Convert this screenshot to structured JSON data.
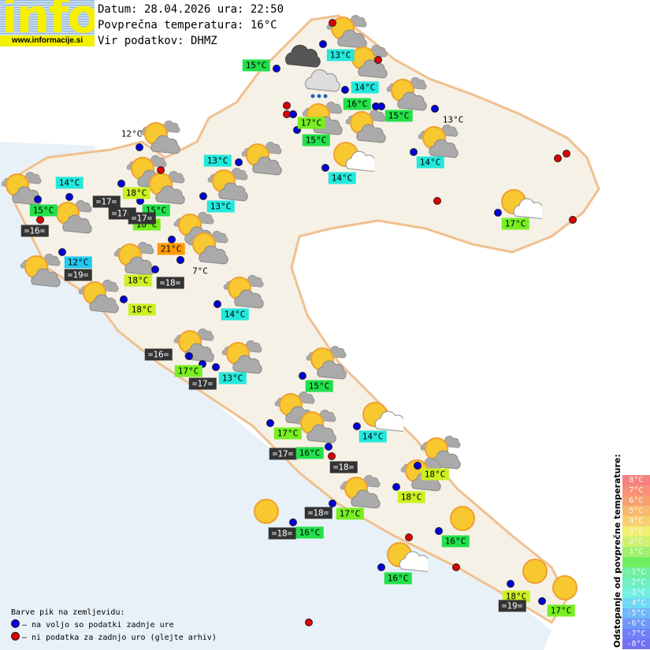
{
  "header": {
    "logo_text": "info",
    "logo_url": "www.informacije.si",
    "date_line": "Datum: 28.04.2026 ura: 22:50",
    "avg_temp_line": "Povprečna temperatura: 16°C",
    "source_line": "Vir podatkov: DHMZ"
  },
  "colors": {
    "cyan": "#22e8dc",
    "green": "#22e04a",
    "lime": "#77ee22",
    "yellow": "#ccf022",
    "orange": "#ff9a00",
    "blue": "#22c8f0",
    "sea": "#333333",
    "plain": "transparent",
    "dot_blue": "#0000dd",
    "dot_red": "#dd0000",
    "land": "#f6f1e6",
    "sea_bg": "#e8f1f8"
  },
  "stations": [
    {
      "label": "13°C",
      "style": "cyan",
      "dot": "blue"
    },
    {
      "label": "15°C",
      "style": "green",
      "dot": "blue"
    },
    {
      "label": "14°C",
      "style": "cyan",
      "dot": "blue"
    },
    {
      "label": "16°C",
      "style": "green",
      "dot": "blue"
    },
    {
      "label": "15°C",
      "style": "green",
      "dot": "blue"
    },
    {
      "label": "13°C",
      "style": "plain",
      "dot": "blue"
    },
    {
      "label": "17°C",
      "style": "lime",
      "dot": "blue"
    },
    {
      "label": "15°C",
      "style": "green",
      "dot": "blue"
    },
    {
      "label": "14°C",
      "style": "cyan",
      "dot": "blue"
    },
    {
      "label": "14°C",
      "style": "cyan",
      "dot": "blue"
    },
    {
      "label": "12°C",
      "style": "plain",
      "dot": "blue"
    },
    {
      "label": "13°C",
      "style": "cyan",
      "dot": "blue"
    },
    {
      "label": "14°C",
      "style": "cyan",
      "dot": "blue"
    },
    {
      "label": "18°C",
      "style": "yellow",
      "dot": "blue"
    },
    {
      "label": "15°C",
      "style": "green",
      "dot": "blue"
    },
    {
      "label": "=17=",
      "style": "sea",
      "dot": null
    },
    {
      "label": "=17=",
      "style": "sea",
      "dot": "blue"
    },
    {
      "label": "18°C",
      "style": "lime",
      "dot": null
    },
    {
      "label": "15°C",
      "style": "green",
      "dot": "blue"
    },
    {
      "label": "=17=",
      "style": "sea",
      "dot": null
    },
    {
      "label": "13°C",
      "style": "cyan",
      "dot": "blue"
    },
    {
      "label": "=16=",
      "style": "sea",
      "dot": "red"
    },
    {
      "label": "21°C",
      "style": "orange",
      "dot": "blue"
    },
    {
      "label": "12°C",
      "style": "blue",
      "dot": "blue"
    },
    {
      "label": "=19=",
      "style": "sea",
      "dot": null
    },
    {
      "label": "7°C",
      "style": "plain",
      "dot": "blue"
    },
    {
      "label": "18°C",
      "style": "yellow",
      "dot": "blue"
    },
    {
      "label": "=18=",
      "style": "sea",
      "dot": null
    },
    {
      "label": "18°C",
      "style": "yellow",
      "dot": "blue"
    },
    {
      "label": "14°C",
      "style": "cyan",
      "dot": "blue"
    },
    {
      "label": "=16=",
      "style": "sea",
      "dot": null
    },
    {
      "label": "17°C",
      "style": "lime",
      "dot": "blue"
    },
    {
      "label": "13°C",
      "style": "cyan",
      "dot": "blue"
    },
    {
      "label": "=17=",
      "style": "sea",
      "dot": null
    },
    {
      "label": "15°C",
      "style": "green",
      "dot": "blue"
    },
    {
      "label": "17°C",
      "style": "lime",
      "dot": "blue"
    },
    {
      "label": "14°C",
      "style": "cyan",
      "dot": "blue"
    },
    {
      "label": "=17=",
      "style": "sea",
      "dot": null
    },
    {
      "label": "16°C",
      "style": "green",
      "dot": "blue"
    },
    {
      "label": "=18=",
      "style": "sea",
      "dot": "red"
    },
    {
      "label": "18°C",
      "style": "yellow",
      "dot": "blue"
    },
    {
      "label": "18°C",
      "style": "yellow",
      "dot": "blue"
    },
    {
      "label": "=18=",
      "style": "sea",
      "dot": null
    },
    {
      "label": "17°C",
      "style": "lime",
      "dot": "blue"
    },
    {
      "label": "=18=",
      "style": "sea",
      "dot": null
    },
    {
      "label": "16°C",
      "style": "green",
      "dot": "blue"
    },
    {
      "label": "16°C",
      "style": "green",
      "dot": "blue"
    },
    {
      "label": "16°C",
      "style": "green",
      "dot": "blue"
    },
    {
      "label": "18°C",
      "style": "yellow",
      "dot": "blue"
    },
    {
      "label": "=19=",
      "style": "sea",
      "dot": null
    },
    {
      "label": "17°C",
      "style": "lime",
      "dot": "blue"
    },
    {
      "label": "17°C",
      "style": "lime",
      "dot": "blue"
    }
  ],
  "extra_dots": [
    "red",
    "red",
    "red",
    "red",
    "red",
    "red",
    "red",
    "red",
    "red",
    "red",
    "red",
    "red",
    "blue",
    "blue",
    "blue",
    "blue"
  ],
  "icons": [
    "sun-cloud",
    "sun-cloud",
    "sun-cloud",
    "sun-cloud",
    "sun-cloud",
    "sun-cloud",
    "sun-cloud",
    "sun-cloud",
    "sun-cloud",
    "sun-cloud",
    "sun-cloud",
    "sun-cloud",
    "sun-cloud",
    "sun-cloud",
    "sun-cloud",
    "sun-cloud",
    "sun-cloud",
    "sun-cloud",
    "sun-cloud",
    "sun-cloud",
    "sun-cloud",
    "sun-cloud",
    "sun-cloud",
    "sun-cloud",
    "sun-cloud",
    "sun-cloud",
    "sun-cloud",
    "dark-cloud",
    "rain-cloud",
    "sun-white-cloud",
    "sun-white-cloud",
    "sun-white-cloud",
    "sun-white-cloud",
    "sun",
    "sun",
    "sun",
    "sun"
  ],
  "legend": {
    "title": "Barve pik na zemljevidu:",
    "blue": "– na voljo so podatki zadnje ure",
    "red": "– ni podatka za zadnjo uro (glejte arhiv)"
  },
  "scale": {
    "title": "Odstopanje od povprečne temperature:",
    "steps": [
      {
        "label": "8°C",
        "color": "#f88080"
      },
      {
        "label": "7°C",
        "color": "#f89078"
      },
      {
        "label": "6°C",
        "color": "#f8a070"
      },
      {
        "label": "5°C",
        "color": "#f8b870"
      },
      {
        "label": "4°C",
        "color": "#f8d070"
      },
      {
        "label": "3°C",
        "color": "#f0f070"
      },
      {
        "label": "2°C",
        "color": "#d0f070"
      },
      {
        "label": "1°C",
        "color": "#a0f070"
      },
      {
        "label": "",
        "color": "#70ee60"
      },
      {
        "label": "-1°C",
        "color": "#70f0a0"
      },
      {
        "label": "-2°C",
        "color": "#70f0c0"
      },
      {
        "label": "-3°C",
        "color": "#70f0e0"
      },
      {
        "label": "-4°C",
        "color": "#70d8f8"
      },
      {
        "label": "-5°C",
        "color": "#70b8f8"
      },
      {
        "label": "-6°C",
        "color": "#7098f8"
      },
      {
        "label": "-7°C",
        "color": "#7080f8"
      },
      {
        "label": "-8°C",
        "color": "#7070f0"
      }
    ]
  }
}
